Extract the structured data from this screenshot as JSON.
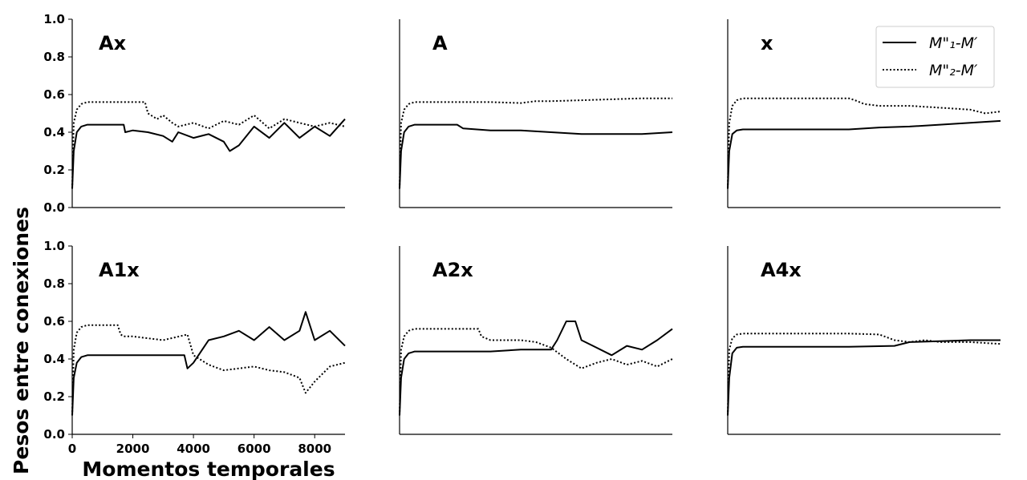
{
  "chart_data": {
    "type": "line",
    "ylabel": "Pesos entre conexiones",
    "xlabel": "Momentos temporales",
    "xlim": [
      0,
      9000
    ],
    "ylim": [
      0,
      1.0
    ],
    "xticks": [
      "0",
      "2000",
      "4000",
      "6000",
      "8000"
    ],
    "yticks": [
      "0.0",
      "0.2",
      "0.4",
      "0.6",
      "0.8",
      "1.0"
    ],
    "legend": {
      "placement": "top-right",
      "entries": [
        {
          "label": "M\"₁-M′",
          "style": "solid"
        },
        {
          "label": "M\"₂-M′",
          "style": "dotted"
        }
      ]
    },
    "panels": [
      {
        "title": "Ax",
        "series": [
          {
            "style": "solid",
            "x": [
              0,
              50,
              150,
              300,
              500,
              800,
              1700,
              1750,
              2000,
              2500,
              3000,
              3300,
              3500,
              4000,
              4500,
              5000,
              5200,
              5500,
              6000,
              6500,
              7000,
              7500,
              8000,
              8500,
              9000
            ],
            "y": [
              0.1,
              0.3,
              0.4,
              0.43,
              0.44,
              0.44,
              0.44,
              0.4,
              0.41,
              0.4,
              0.38,
              0.35,
              0.4,
              0.37,
              0.39,
              0.35,
              0.3,
              0.33,
              0.43,
              0.37,
              0.45,
              0.37,
              0.43,
              0.38,
              0.47
            ]
          },
          {
            "style": "dotted",
            "x": [
              0,
              50,
              150,
              300,
              500,
              800,
              2400,
              2500,
              2800,
              3000,
              3300,
              3500,
              4000,
              4500,
              5000,
              5500,
              6000,
              6500,
              7000,
              7500,
              8000,
              8500,
              9000
            ],
            "y": [
              0.1,
              0.45,
              0.52,
              0.55,
              0.56,
              0.56,
              0.56,
              0.5,
              0.47,
              0.49,
              0.45,
              0.43,
              0.45,
              0.42,
              0.46,
              0.44,
              0.49,
              0.42,
              0.47,
              0.45,
              0.43,
              0.45,
              0.43
            ]
          }
        ]
      },
      {
        "title": "A",
        "series": [
          {
            "style": "solid",
            "x": [
              0,
              50,
              150,
              300,
              500,
              800,
              1900,
              2100,
              3000,
              4000,
              5000,
              6000,
              7000,
              8000,
              9000
            ],
            "y": [
              0.1,
              0.3,
              0.4,
              0.43,
              0.44,
              0.44,
              0.44,
              0.42,
              0.41,
              0.41,
              0.4,
              0.39,
              0.39,
              0.39,
              0.4
            ]
          },
          {
            "style": "dotted",
            "x": [
              0,
              50,
              150,
              300,
              500,
              800,
              2000,
              3000,
              4000,
              4500,
              5000,
              6000,
              7000,
              8000,
              9000
            ],
            "y": [
              0.1,
              0.45,
              0.52,
              0.55,
              0.56,
              0.56,
              0.56,
              0.56,
              0.555,
              0.565,
              0.565,
              0.57,
              0.575,
              0.58,
              0.58
            ]
          }
        ]
      },
      {
        "title": "x",
        "series": [
          {
            "style": "solid",
            "x": [
              0,
              50,
              150,
              300,
              500,
              800,
              2000,
              4000,
              5000,
              6000,
              7000,
              8000,
              9000
            ],
            "y": [
              0.1,
              0.3,
              0.39,
              0.41,
              0.415,
              0.415,
              0.415,
              0.415,
              0.425,
              0.43,
              0.44,
              0.45,
              0.46
            ]
          },
          {
            "style": "dotted",
            "x": [
              0,
              50,
              150,
              300,
              500,
              800,
              2000,
              4000,
              4200,
              4500,
              5000,
              6000,
              7000,
              8000,
              8500,
              9000
            ],
            "y": [
              0.1,
              0.45,
              0.54,
              0.57,
              0.58,
              0.58,
              0.58,
              0.58,
              0.57,
              0.55,
              0.54,
              0.54,
              0.53,
              0.52,
              0.5,
              0.51
            ]
          }
        ]
      },
      {
        "title": "A1x",
        "series": [
          {
            "style": "solid",
            "x": [
              0,
              50,
              150,
              300,
              500,
              800,
              2000,
              3000,
              3700,
              3800,
              4000,
              4500,
              5000,
              5500,
              6000,
              6500,
              7000,
              7500,
              7700,
              8000,
              8500,
              9000
            ],
            "y": [
              0.1,
              0.3,
              0.38,
              0.41,
              0.42,
              0.42,
              0.42,
              0.42,
              0.42,
              0.35,
              0.38,
              0.5,
              0.52,
              0.55,
              0.5,
              0.57,
              0.5,
              0.55,
              0.65,
              0.5,
              0.55,
              0.47
            ]
          },
          {
            "style": "dotted",
            "x": [
              0,
              50,
              150,
              300,
              500,
              800,
              1500,
              1600,
              1700,
              2000,
              3000,
              3800,
              4000,
              4500,
              5000,
              6000,
              6500,
              7000,
              7500,
              7700,
              8000,
              8500,
              9000
            ],
            "y": [
              0.1,
              0.45,
              0.54,
              0.57,
              0.58,
              0.58,
              0.58,
              0.53,
              0.52,
              0.52,
              0.5,
              0.53,
              0.42,
              0.37,
              0.34,
              0.36,
              0.34,
              0.33,
              0.3,
              0.22,
              0.28,
              0.36,
              0.38
            ]
          }
        ]
      },
      {
        "title": "A2x",
        "series": [
          {
            "style": "solid",
            "x": [
              0,
              50,
              150,
              300,
              500,
              800,
              2000,
              3000,
              4000,
              5000,
              5200,
              5500,
              5800,
              6000,
              6500,
              7000,
              7500,
              8000,
              8500,
              9000
            ],
            "y": [
              0.1,
              0.3,
              0.4,
              0.43,
              0.44,
              0.44,
              0.44,
              0.44,
              0.45,
              0.45,
              0.5,
              0.6,
              0.6,
              0.5,
              0.46,
              0.42,
              0.47,
              0.45,
              0.5,
              0.56
            ]
          },
          {
            "style": "dotted",
            "x": [
              0,
              50,
              150,
              300,
              500,
              800,
              2000,
              2600,
              2700,
              3000,
              4000,
              4500,
              5000,
              5500,
              6000,
              6500,
              7000,
              7500,
              8000,
              8500,
              9000
            ],
            "y": [
              0.1,
              0.45,
              0.52,
              0.55,
              0.56,
              0.56,
              0.56,
              0.56,
              0.52,
              0.5,
              0.5,
              0.49,
              0.46,
              0.4,
              0.35,
              0.38,
              0.4,
              0.37,
              0.39,
              0.36,
              0.4
            ]
          }
        ]
      },
      {
        "title": "A4x",
        "series": [
          {
            "style": "solid",
            "x": [
              0,
              50,
              150,
              300,
              500,
              800,
              2000,
              4000,
              5500,
              6000,
              7000,
              8000,
              9000
            ],
            "y": [
              0.1,
              0.3,
              0.43,
              0.46,
              0.465,
              0.465,
              0.465,
              0.465,
              0.47,
              0.49,
              0.495,
              0.5,
              0.5
            ]
          },
          {
            "style": "dotted",
            "x": [
              0,
              50,
              150,
              300,
              500,
              800,
              2000,
              4000,
              5000,
              5500,
              6000,
              6500,
              7000,
              8000,
              9000
            ],
            "y": [
              0.1,
              0.45,
              0.51,
              0.53,
              0.535,
              0.535,
              0.535,
              0.535,
              0.53,
              0.5,
              0.49,
              0.5,
              0.49,
              0.49,
              0.48
            ]
          }
        ]
      }
    ]
  }
}
